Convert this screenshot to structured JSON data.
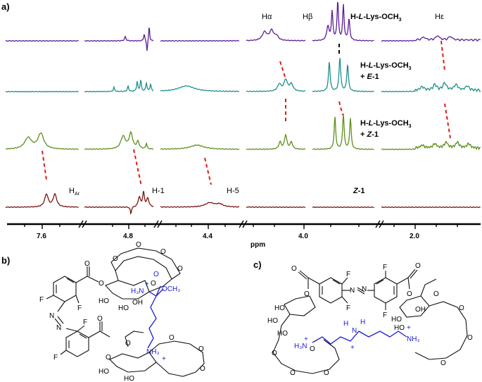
{
  "panels": {
    "a": "a)",
    "b": "b)",
    "c": "c)"
  },
  "spectrum": {
    "axis": {
      "ticks": [
        "7.6",
        "4.8",
        "4.4",
        "4.0",
        "2.0"
      ],
      "unit": "ppm"
    },
    "traces": [
      {
        "label_line1": "H-L-Lys-OCH₃",
        "label_line2": "",
        "color": "#5b1e96"
      },
      {
        "label_line1": "H-L-Lys-OCH₃",
        "label_line2": "+ E-1",
        "color": "#1f8f8a"
      },
      {
        "label_line1": "H-L-Lys-OCH₃",
        "label_line2": "+ Z-1",
        "color": "#5e8f1a"
      },
      {
        "label_line1": "Z-1",
        "label_line2": "",
        "color": "#7a1414"
      }
    ],
    "peak_labels": {
      "h_alpha": "Hα",
      "h_beta": "Hβ",
      "h_epsilon": "Hε",
      "h_ar": "H",
      "h_ar_sub": "Ar",
      "h1": "H-1",
      "h5": "H-5"
    },
    "correlation_color": "#e01b1b"
  },
  "structure_b": {
    "atoms": {
      "f": "F",
      "n": "N",
      "o": "O",
      "ho": "HO",
      "oh": "OH",
      "och3": "OCH₃",
      "h3n": "H₃N",
      "nh3": "NH₃",
      "plus": "+"
    }
  },
  "structure_c": {
    "atoms": {
      "f": "F",
      "n": "N",
      "o": "O",
      "ho": "HO",
      "oh": "OH",
      "h3n": "H₃N",
      "nh3": "NH₃",
      "h": "H",
      "plus": "+"
    }
  }
}
